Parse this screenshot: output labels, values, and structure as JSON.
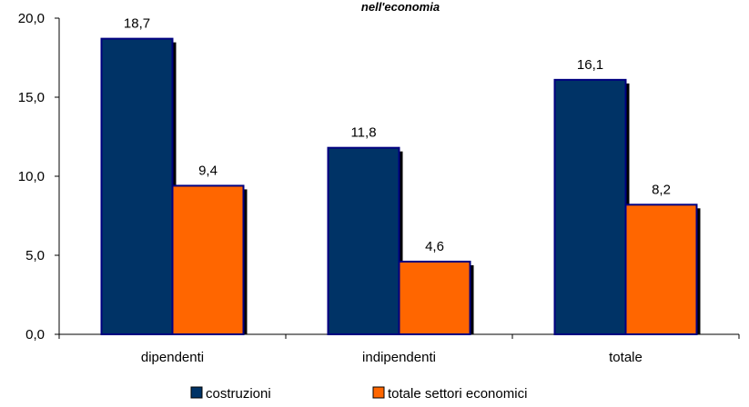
{
  "chart_data": {
    "type": "bar",
    "title": "nell'economia",
    "categories": [
      "dipendenti",
      "indipendenti",
      "totale"
    ],
    "series": [
      {
        "name": "costruzioni",
        "values": [
          18.7,
          11.8,
          16.1
        ],
        "labels": [
          "18,7",
          "11,8",
          "16,1"
        ],
        "color": "#003366"
      },
      {
        "name": "totale settori economici",
        "values": [
          9.4,
          4.6,
          8.2
        ],
        "labels": [
          "9,4",
          "4,6",
          "8,2"
        ],
        "color": "#FF6600"
      }
    ],
    "ylim": [
      0,
      20
    ],
    "yticks": [
      0,
      5,
      10,
      15,
      20
    ],
    "ytick_labels": [
      "0,0",
      "5,0",
      "10,0",
      "15,0",
      "20,0"
    ],
    "grid": false,
    "legend_position": "bottom",
    "bar_outline_color": "#000080",
    "shadow_color": "#000000"
  }
}
